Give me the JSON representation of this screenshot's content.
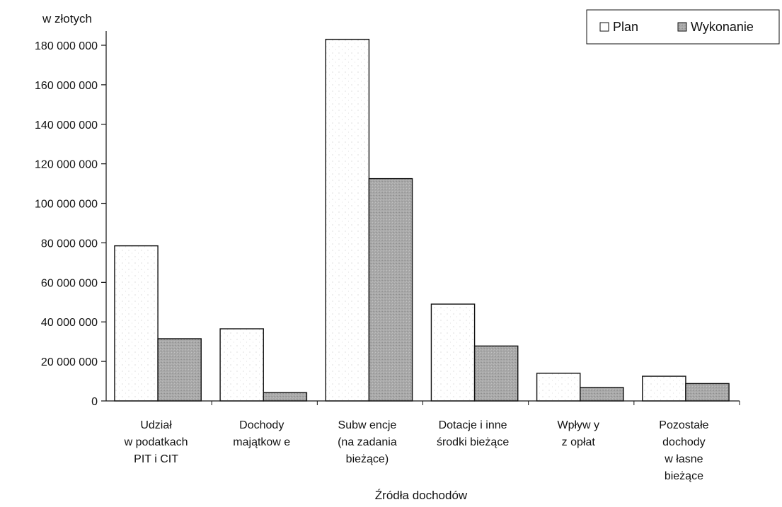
{
  "chart_data": {
    "type": "bar",
    "ylabel": "w złotych",
    "xlabel": "Źródła dochodów",
    "ylim": [
      0,
      180000000
    ],
    "yticks": [
      0,
      20000000,
      40000000,
      60000000,
      80000000,
      100000000,
      120000000,
      140000000,
      160000000,
      180000000
    ],
    "ytick_labels": [
      "0",
      "20 000 000",
      "40 000 000",
      "60 000 000",
      "80 000 000",
      "100 000 000",
      "120 000 000",
      "140 000 000",
      "160 000 000",
      "180 000 000"
    ],
    "categories": [
      [
        "Udział",
        "w podatkach",
        "PIT i CIT"
      ],
      [
        "Dochody",
        "majątkow e"
      ],
      [
        "Subw encje",
        "(na zadania",
        "bieżące)"
      ],
      [
        "Dotacje i inne",
        "środki bieżące"
      ],
      [
        "Wpływ y",
        "z opłat"
      ],
      [
        "Pozostałe",
        "dochody",
        "w łasne",
        "bieżące"
      ]
    ],
    "series": [
      {
        "name": "Plan",
        "values": [
          78500000,
          36500000,
          183000000,
          49000000,
          14000000,
          12500000
        ],
        "color": "#ffffff"
      },
      {
        "name": "Wykonanie",
        "values": [
          31500000,
          4200000,
          112500000,
          27800000,
          6800000,
          8800000
        ],
        "color": "#a9a9a9"
      }
    ],
    "legend": {
      "placement": "top-right",
      "entries": [
        "Plan",
        "Wykonanie"
      ]
    },
    "grid": false
  }
}
